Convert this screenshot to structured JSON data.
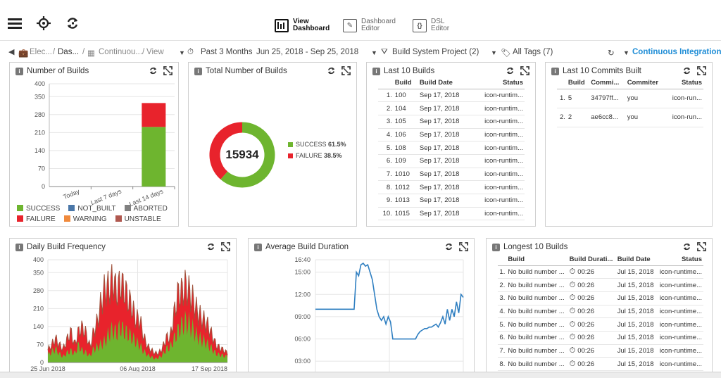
{
  "toolbar": {
    "modes": [
      {
        "line1": "View",
        "line2": "Dashboard"
      },
      {
        "line1": "Dashboard",
        "line2": "Editor"
      },
      {
        "line1": "DSL",
        "line2": "Editor"
      }
    ]
  },
  "filters": {
    "breadcrumb": [
      "Elec...",
      "Das...",
      "Continuou...",
      "View"
    ],
    "time_range": "Past 3 Months",
    "date_range": "Jun 25, 2018 - Sep 25, 2018",
    "project_filter": "Build System Project (2)",
    "tags_filter": "All Tags (7)",
    "pipeline": "Continuous Integration"
  },
  "panels": {
    "number_of_builds": {
      "title": "Number of Builds",
      "legend": [
        {
          "label": "SUCCESS",
          "color": "#6eb52f"
        },
        {
          "label": "NOT_BUILT",
          "color": "#4a77a8"
        },
        {
          "label": "ABORTED",
          "color": "#808080"
        },
        {
          "label": "FAILURE",
          "color": "#e8232c"
        },
        {
          "label": "WARNING",
          "color": "#f08a3c"
        },
        {
          "label": "UNSTABLE",
          "color": "#b0584f"
        }
      ]
    },
    "total_builds": {
      "title": "Total Number of Builds",
      "total": "15934",
      "legend": [
        {
          "label": "SUCCESS",
          "pct": "61.5%",
          "color": "#6eb52f"
        },
        {
          "label": "FAILURE",
          "pct": "38.5%",
          "color": "#e8232c"
        }
      ]
    },
    "last_10_builds": {
      "title": "Last 10 Builds",
      "headers": [
        "Build",
        "Build Date",
        "Status"
      ],
      "rows": [
        [
          "1.",
          "100",
          "Sep 17, 2018",
          "icon-runtim..."
        ],
        [
          "2.",
          "104",
          "Sep 17, 2018",
          "icon-runtim..."
        ],
        [
          "3.",
          "105",
          "Sep 17, 2018",
          "icon-runtim..."
        ],
        [
          "4.",
          "106",
          "Sep 17, 2018",
          "icon-runtim..."
        ],
        [
          "5.",
          "108",
          "Sep 17, 2018",
          "icon-runtim..."
        ],
        [
          "6.",
          "109",
          "Sep 17, 2018",
          "icon-runtim..."
        ],
        [
          "7.",
          "1010",
          "Sep 17, 2018",
          "icon-runtim..."
        ],
        [
          "8.",
          "1012",
          "Sep 17, 2018",
          "icon-runtim..."
        ],
        [
          "9.",
          "1013",
          "Sep 17, 2018",
          "icon-runtim..."
        ],
        [
          "10.",
          "1015",
          "Sep 17, 2018",
          "icon-runtim..."
        ]
      ]
    },
    "last_10_commits": {
      "title": "Last 10 Commits Built",
      "headers": [
        "Build",
        "Commi...",
        "Commiter",
        "Status"
      ],
      "rows": [
        [
          "1.",
          "5",
          "34797ff...",
          "you",
          "icon-run..."
        ],
        [
          "2.",
          "2",
          "ae6cc8...",
          "you",
          "icon-run..."
        ]
      ]
    },
    "daily_frequency": {
      "title": "Daily Build Frequency"
    },
    "avg_duration": {
      "title": "Average Build Duration"
    },
    "longest_builds": {
      "title": "Longest 10 Builds",
      "headers": [
        "Build",
        "Build Durati...",
        "Build Date",
        "Status"
      ],
      "rows": [
        [
          "1.",
          "No build number ...",
          "00:26",
          "Jul 15, 2018",
          "icon-runtime..."
        ],
        [
          "2.",
          "No build number ...",
          "00:26",
          "Jul 15, 2018",
          "icon-runtime..."
        ],
        [
          "3.",
          "No build number ...",
          "00:26",
          "Jul 15, 2018",
          "icon-runtime..."
        ],
        [
          "4.",
          "No build number ...",
          "00:26",
          "Jul 15, 2018",
          "icon-runtime..."
        ],
        [
          "5.",
          "No build number ...",
          "00:26",
          "Jul 15, 2018",
          "icon-runtime..."
        ],
        [
          "6.",
          "No build number ...",
          "00:26",
          "Jul 15, 2018",
          "icon-runtime..."
        ],
        [
          "7.",
          "No build number ...",
          "00:26",
          "Jul 15, 2018",
          "icon-runtime..."
        ],
        [
          "8.",
          "No build number ...",
          "00:26",
          "Jul 15, 2018",
          "icon-runtime..."
        ]
      ]
    }
  },
  "chart_data": [
    {
      "type": "bar",
      "id": "number_of_builds",
      "categories": [
        "Today",
        "Last 7 days",
        "Last 14 days"
      ],
      "series": [
        {
          "name": "SUCCESS",
          "values": [
            0,
            0,
            232
          ]
        },
        {
          "name": "FAILURE",
          "values": [
            0,
            0,
            93
          ]
        }
      ],
      "yticks": [
        0,
        70,
        140,
        210,
        280,
        350,
        400
      ],
      "ylim": [
        0,
        400
      ]
    },
    {
      "type": "pie",
      "id": "total_builds",
      "slices": [
        {
          "name": "SUCCESS",
          "value": 61.5
        },
        {
          "name": "FAILURE",
          "value": 38.5
        }
      ],
      "center_label": "15934"
    },
    {
      "type": "area",
      "id": "daily_frequency",
      "xticks": [
        "25 Jun 2018",
        "06 Aug 2018",
        "17 Sep 2018"
      ],
      "yticks": [
        0,
        70,
        140,
        210,
        280,
        350,
        400
      ],
      "ylim": [
        0,
        400
      ],
      "series": [
        {
          "name": "SUCCESS",
          "values": [
            40,
            55,
            70,
            45,
            30,
            50,
            60,
            45,
            90,
            60,
            50,
            35,
            70,
            80,
            95,
            110,
            150,
            170,
            150,
            185,
            160,
            150,
            130,
            110,
            90,
            60,
            40,
            30,
            20,
            25,
            40,
            70,
            80,
            120,
            160,
            190,
            210,
            200,
            170,
            140,
            120,
            110,
            90,
            70,
            45,
            40,
            35,
            30
          ]
        },
        {
          "name": "FAILURE",
          "values": [
            20,
            30,
            45,
            40,
            35,
            60,
            90,
            40,
            60,
            110,
            90,
            40,
            80,
            120,
            200,
            250,
            210,
            230,
            190,
            200,
            195,
            160,
            140,
            100,
            120,
            70,
            40,
            30,
            25,
            20,
            30,
            50,
            40,
            110,
            170,
            150,
            160,
            140,
            130,
            110,
            100,
            90,
            85,
            60,
            40,
            30,
            25,
            15
          ]
        }
      ]
    },
    {
      "type": "line",
      "id": "avg_duration",
      "yticks": [
        "03:00",
        "06:00",
        "09:00",
        "12:00",
        "15:00",
        "16:40"
      ],
      "series": [
        {
          "name": "duration",
          "values_hours": [
            10,
            10,
            10,
            10,
            10,
            10,
            10,
            10,
            10,
            10,
            10,
            10,
            10,
            10,
            10,
            10,
            10,
            10,
            15,
            14.5,
            16,
            16.2,
            15.8,
            16,
            15,
            14,
            12,
            10,
            9,
            8.5,
            9,
            8,
            9,
            8.3,
            6,
            6,
            6,
            6,
            6,
            6,
            6,
            6,
            6,
            6,
            6,
            6.6,
            7,
            7.2,
            7.4,
            7.4,
            7.6,
            7.6,
            7.8,
            8,
            7.6,
            8.2,
            9,
            8,
            10,
            8.5,
            10,
            9,
            11,
            9.5,
            12,
            11.6
          ]
        }
      ]
    }
  ]
}
